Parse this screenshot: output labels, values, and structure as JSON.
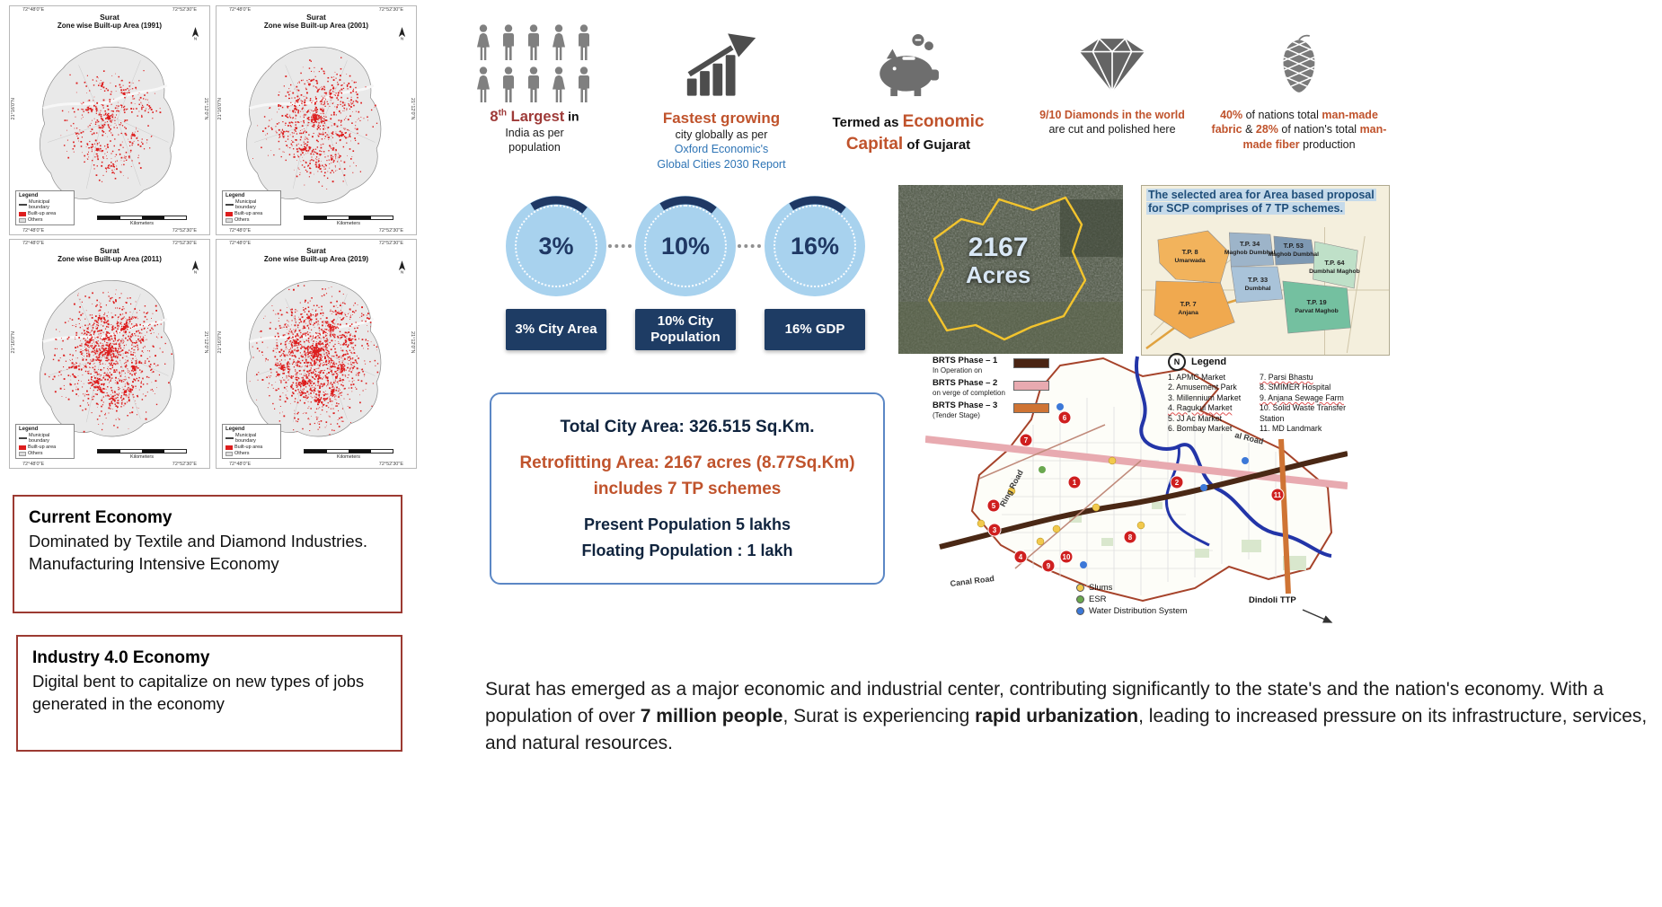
{
  "colors": {
    "accent_orange": "#c0532c",
    "accent_maroon": "#9e3a38",
    "accent_blue": "#2e74b5",
    "navy": "#1f3864",
    "kpi_circle_fill": "#a8d2ee",
    "economy_box_border": "#9c3a32",
    "info_box_border": "#5b87c5",
    "builtup_red": "#dd1e1e",
    "satellite_boundary_yellow": "#f3c42d"
  },
  "icons": [
    "people-icons",
    "growth-chart-icon",
    "piggy-bank-icon",
    "diamond-icon",
    "yarn-cone-icon",
    "north-arrow-icon",
    "compass-icon"
  ],
  "maps": {
    "coord_top_left": "72°48'0\"E",
    "coord_top_right": "72°52'30\"E",
    "coord_side_top": "21°16'0\"N",
    "coord_side_bottom": "21°12'0\"N",
    "legend_title": "Legend",
    "legend_items": [
      "Municipal boundary",
      "Built-up area",
      "Others"
    ],
    "scale_label": "Kilometers",
    "panels": [
      {
        "title1": "Surat",
        "title2": "Zone wise Built-up Area (1991)"
      },
      {
        "title1": "Surat",
        "title2": "Zone wise Built-up Area (2001)"
      },
      {
        "title1": "Surat",
        "title2": "Zone wise Built-up Area (2011)"
      },
      {
        "title1": "Surat",
        "title2": "Zone wise Built-up Area (2019)"
      }
    ]
  },
  "economy_boxes": [
    {
      "title": "Current Economy",
      "body": "Dominated by Textile and Diamond Industries. Manufacturing Intensive Economy"
    },
    {
      "title": "Industry 4.0 Economy",
      "body": "Digital bent to capitalize on new types of jobs generated in the economy"
    }
  ],
  "stats": {
    "population": {
      "value": "8",
      "sup": "th",
      "highlight": " Largest",
      "tail": " in",
      "line2": "India as per",
      "line3": "population"
    },
    "growth": {
      "headline": "Fastest growing",
      "line2": "city globally as per",
      "line3": "Oxford Economic's",
      "line4": "Global Cities 2030 Report"
    },
    "economic_capital": {
      "prefix": "Termed as ",
      "highlight": "Economic Capital",
      "suffix": " of Gujarat"
    },
    "diamonds": {
      "highlight": "9/10 Diamonds in the world",
      "rest": " are cut and polished here"
    },
    "textile": {
      "p1": "40%",
      "p2": " of nations total ",
      "p3": "man-made fabric",
      "p4": " & ",
      "p5": "28%",
      "p6": " of nation's total ",
      "p7": "man-made fiber",
      "p8": " production"
    }
  },
  "kpis": [
    {
      "value": "3%",
      "label": "3% City Area"
    },
    {
      "value": "10%",
      "label": "10% City Population"
    },
    {
      "value": "16%",
      "label": "16% GDP"
    }
  ],
  "satellite": {
    "line1": "2167",
    "line2": "Acres"
  },
  "tp_map": {
    "title1": "The selected area for Area based proposal",
    "title2": "for SCP comprises of 7 TP schemes.",
    "schemes": [
      {
        "code": "T.P. 8",
        "name": "Umarwada"
      },
      {
        "code": "T.P. 34",
        "name": "Maghob Dumbhal"
      },
      {
        "code": "T.P. 53",
        "name": "Maghob Dumbhal"
      },
      {
        "code": "T.P. 64",
        "name": "Dumbhal Maghob"
      },
      {
        "code": "T.P. 33",
        "name": "Dumbhal"
      },
      {
        "code": "T.P. 7",
        "name": "Anjana"
      },
      {
        "code": "T.P. 19",
        "name": "Parvat Maghob"
      }
    ]
  },
  "info_box": {
    "line1": "Total City Area: 326.515 Sq.Km.",
    "line2a": "Retrofitting Area: 2167 acres (8.77Sq.Km)",
    "line2b": "includes 7 TP schemes",
    "line3": "Present Population 5 lakhs",
    "line4": "Floating Population : 1 lakh"
  },
  "city_map": {
    "brts_legend": [
      {
        "label": "BRTS Phase – 1",
        "sub": "In Operation on",
        "color": "#4a2413"
      },
      {
        "label": "BRTS Phase – 2",
        "sub": "on verge of completion",
        "color": "#e8aab0"
      },
      {
        "label": "BRTS Phase – 3",
        "sub": "(Tender Stage)",
        "color": "#cf7434"
      }
    ],
    "legend_title": "Legend",
    "legend_col1": [
      "1.  APMC Market",
      "2.  Amusement Park",
      "3.  Millennium Market",
      "4.  Ragukul Market",
      "5.  JJ Ac Market",
      "6.  Bombay Market"
    ],
    "legend_col2": [
      "7.  Parsi Bhastu",
      "8.  SMIMER Hospital",
      "9.  Anjana Sewage Farm",
      "10. Solid Waste Transfer Station",
      "11. MD Landmark"
    ],
    "dot_legend": [
      {
        "label": "Slums",
        "color": "#f2c94c"
      },
      {
        "label": "ESR",
        "color": "#6aa84f"
      },
      {
        "label": "Water Distribution System",
        "color": "#3c78d8"
      }
    ],
    "road_labels": {
      "ring": "Ring Road",
      "canal": "Canal Road",
      "partial": "al Road"
    },
    "ttp_label": "Dindoli TTP",
    "markers": [
      "1",
      "2",
      "3",
      "4",
      "5",
      "6",
      "7",
      "8",
      "9",
      "10",
      "11"
    ]
  },
  "footer": {
    "parts": [
      {
        "text": "Surat has emerged as a major economic and industrial center, contributing significantly to the state's and the nation's economy. With a population of over "
      },
      {
        "text": "7 million people",
        "bold": true
      },
      {
        "text": ", Surat is experiencing "
      },
      {
        "text": "rapid urbanization",
        "bold": true
      },
      {
        "text": ", leading to increased pressure on its infrastructure, services, and natural resources."
      }
    ]
  }
}
